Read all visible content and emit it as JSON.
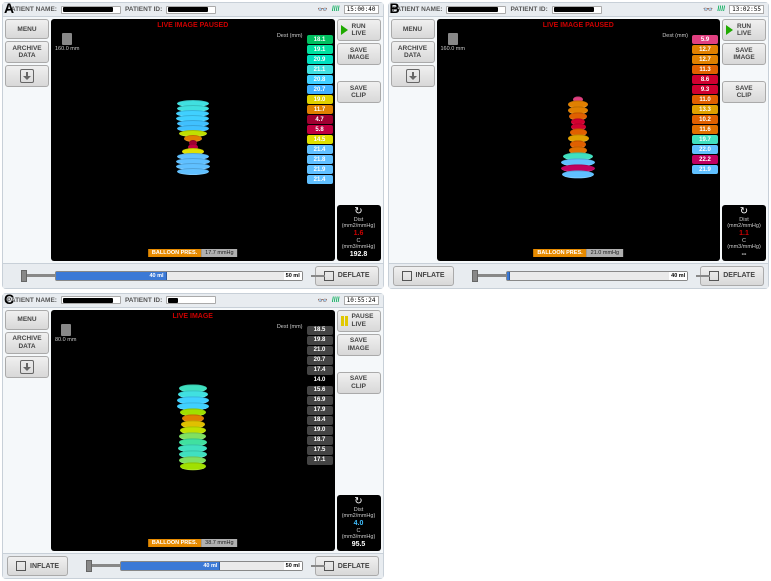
{
  "labels": {
    "a": "A",
    "b": "B",
    "c": "C"
  },
  "common": {
    "topbar": {
      "patientName": "PATIENT NAME:",
      "patientId": "PATIENT ID:"
    },
    "leftcol": {
      "menu": "MENU",
      "archive": "ARCHIVE\nDATA"
    },
    "rightcol": {
      "saveImage": "SAVE\nIMAGE",
      "saveClip": "SAVE\nCLIP"
    },
    "bottombar": {
      "inflate": "INFLATE",
      "deflate": "DEFLATE"
    },
    "pressureLabel": "BALLOON PRES.",
    "destLabel": "Dest (mm)",
    "distLabel": "Dist (mm2/mmHg)",
    "compLabel": "C (mm3/mmHg)"
  },
  "panels": {
    "a": {
      "clock": "15:00:40",
      "liveText": "LIVE IMAGE PAUSED",
      "liveColor": "#cc0000",
      "imgSize": "160.0 mm",
      "runText": "RUN\nLIVE",
      "runIcon": "play",
      "pressureVal": "17.7 mmHg",
      "distVal": "1.6",
      "distColor": "#cc0000",
      "compVal": "192.8",
      "compColor": "#ffffff",
      "syringe": {
        "fillPct": 45,
        "fillLabel": "40 ml",
        "capLabel": "50 ml",
        "capPos": "right",
        "showInflate": false
      },
      "glassesColor": "#cc0000",
      "wavesColor": "#00aa55",
      "colorbar_mode": "rainbow",
      "readings": [
        {
          "v": "18.1",
          "c": "#00c060"
        },
        {
          "v": "19.1",
          "c": "#00e0a0"
        },
        {
          "v": "20.9",
          "c": "#00e0c0"
        },
        {
          "v": "21.1",
          "c": "#40e0e0"
        },
        {
          "v": "20.8",
          "c": "#40d0ff"
        },
        {
          "v": "20.7",
          "c": "#40b0ff"
        },
        {
          "v": "19.0",
          "c": "#e0d000"
        },
        {
          "v": "11.7",
          "c": "#e08000"
        },
        {
          "v": "4.7",
          "c": "#a00030"
        },
        {
          "v": "5.8",
          "c": "#c00040"
        },
        {
          "v": "14.5",
          "c": "#e0e000"
        },
        {
          "v": "21.4",
          "c": "#60c0ff"
        },
        {
          "v": "21.8",
          "c": "#60c0ff"
        },
        {
          "v": "21.9",
          "c": "#60c0ff"
        },
        {
          "v": "21.4",
          "c": "#60c0ff"
        }
      ],
      "balloon": [
        {
          "w": 32,
          "h": 7,
          "c": "#40e0e0"
        },
        {
          "w": 32,
          "h": 7,
          "c": "#40e0e0"
        },
        {
          "w": 33,
          "h": 7,
          "c": "#40d0ff"
        },
        {
          "w": 33,
          "h": 7,
          "c": "#40d0ff"
        },
        {
          "w": 32,
          "h": 7,
          "c": "#40c0ff"
        },
        {
          "w": 32,
          "h": 7,
          "c": "#40c0ff"
        },
        {
          "w": 28,
          "h": 7,
          "c": "#c0e000"
        },
        {
          "w": 18,
          "h": 7,
          "c": "#e08000"
        },
        {
          "w": 8,
          "h": 6,
          "c": "#a00030"
        },
        {
          "w": 10,
          "h": 6,
          "c": "#c00040"
        },
        {
          "w": 22,
          "h": 7,
          "c": "#e0e000"
        },
        {
          "w": 32,
          "h": 7,
          "c": "#60c0ff"
        },
        {
          "w": 34,
          "h": 7,
          "c": "#60c0ff"
        },
        {
          "w": 34,
          "h": 7,
          "c": "#60c0ff"
        },
        {
          "w": 32,
          "h": 7,
          "c": "#60c0ff"
        }
      ]
    },
    "b": {
      "clock": "13:02:55",
      "liveText": "LIVE IMAGE PAUSED",
      "liveColor": "#cc0000",
      "imgSize": "160.0 mm",
      "runText": "RUN\nLIVE",
      "runIcon": "play",
      "pressureVal": "21.0 mmHg",
      "distVal": "1.1",
      "distColor": "#cc0000",
      "compVal": "--",
      "compColor": "#ffffff",
      "syringe": {
        "fillPct": 0,
        "fillLabel": "",
        "capLabel": "40 ml",
        "capPos": "right",
        "showInflate": true
      },
      "glassesColor": "#cc0000",
      "wavesColor": "#00aa55",
      "colorbar_mode": "rainbow",
      "readings": [
        {
          "v": "5.9",
          "c": "#e04080"
        },
        {
          "v": "12.7",
          "c": "#e08000"
        },
        {
          "v": "12.7",
          "c": "#e08000"
        },
        {
          "v": "11.3",
          "c": "#e06000"
        },
        {
          "v": "8.6",
          "c": "#d00030"
        },
        {
          "v": "9.3",
          "c": "#d00030"
        },
        {
          "v": "11.0",
          "c": "#e06000"
        },
        {
          "v": "13.3",
          "c": "#e0a000"
        },
        {
          "v": "10.2",
          "c": "#e06000"
        },
        {
          "v": "11.6",
          "c": "#e07000"
        },
        {
          "v": "19.7",
          "c": "#40e0c0"
        },
        {
          "v": "22.0",
          "c": "#60c0ff"
        },
        {
          "v": "22.2",
          "c": "#c00060"
        },
        {
          "v": "21.9",
          "c": "#60c0ff"
        }
      ],
      "balloon": [
        {
          "w": 10,
          "h": 6,
          "c": "#e04080"
        },
        {
          "w": 20,
          "h": 8,
          "c": "#e08000"
        },
        {
          "w": 20,
          "h": 8,
          "c": "#e08000"
        },
        {
          "w": 18,
          "h": 8,
          "c": "#e06000"
        },
        {
          "w": 14,
          "h": 7,
          "c": "#d00030"
        },
        {
          "w": 15,
          "h": 7,
          "c": "#d00030"
        },
        {
          "w": 17,
          "h": 8,
          "c": "#e06000"
        },
        {
          "w": 21,
          "h": 8,
          "c": "#e0a000"
        },
        {
          "w": 16,
          "h": 8,
          "c": "#e06000"
        },
        {
          "w": 18,
          "h": 8,
          "c": "#e07000"
        },
        {
          "w": 30,
          "h": 8,
          "c": "#40e0c0"
        },
        {
          "w": 34,
          "h": 8,
          "c": "#60c0ff"
        },
        {
          "w": 34,
          "h": 8,
          "c": "#c00060"
        },
        {
          "w": 32,
          "h": 8,
          "c": "#60c0ff"
        }
      ]
    },
    "c": {
      "clock": "10:55:24",
      "liveText": "LIVE IMAGE",
      "liveColor": "#cc0000",
      "imgSize": "80.0 mm",
      "runText": "PAUSE\nLIVE",
      "runIcon": "pause",
      "pressureVal": "38.7 mmHg",
      "distVal": "4.0",
      "distColor": "#40c0ff",
      "compVal": "95.5",
      "compColor": "#ffffff",
      "syringe": {
        "fillPct": 55,
        "fillLabel": "40 ml",
        "capLabel": "50 ml",
        "capPos": "right",
        "showInflate": true
      },
      "glassesColor": "#cc0000",
      "wavesColor": "#00aa55",
      "colorbar_mode": "mono",
      "readings": [
        {
          "v": "18.5",
          "c": "#444"
        },
        {
          "v": "19.8",
          "c": "#444"
        },
        {
          "v": "21.0",
          "c": "#444"
        },
        {
          "v": "20.7",
          "c": "#444"
        },
        {
          "v": "17.4",
          "c": "#444"
        },
        {
          "v": "14.0",
          "c": "#000"
        },
        {
          "v": "15.6",
          "c": "#444"
        },
        {
          "v": "16.9",
          "c": "#444"
        },
        {
          "v": "17.9",
          "c": "#444"
        },
        {
          "v": "18.4",
          "c": "#444"
        },
        {
          "v": "19.0",
          "c": "#444"
        },
        {
          "v": "18.7",
          "c": "#444"
        },
        {
          "v": "17.5",
          "c": "#444"
        },
        {
          "v": "17.1",
          "c": "#444"
        }
      ],
      "balloon": [
        {
          "w": 28,
          "h": 8,
          "c": "#40e0c0"
        },
        {
          "w": 30,
          "h": 8,
          "c": "#40e0e0"
        },
        {
          "w": 32,
          "h": 8,
          "c": "#40d0ff"
        },
        {
          "w": 32,
          "h": 8,
          "c": "#40d0ff"
        },
        {
          "w": 26,
          "h": 8,
          "c": "#a0e000"
        },
        {
          "w": 22,
          "h": 8,
          "c": "#e08000"
        },
        {
          "w": 24,
          "h": 8,
          "c": "#e0c000"
        },
        {
          "w": 26,
          "h": 8,
          "c": "#c0e000"
        },
        {
          "w": 27,
          "h": 8,
          "c": "#80e060"
        },
        {
          "w": 28,
          "h": 8,
          "c": "#40e0a0"
        },
        {
          "w": 29,
          "h": 8,
          "c": "#40e0c0"
        },
        {
          "w": 28,
          "h": 8,
          "c": "#40e0c0"
        },
        {
          "w": 27,
          "h": 8,
          "c": "#80e060"
        },
        {
          "w": 26,
          "h": 8,
          "c": "#a0e000"
        }
      ]
    }
  }
}
